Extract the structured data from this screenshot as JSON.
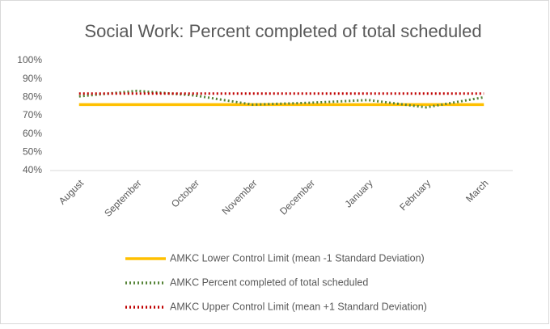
{
  "chart_data": {
    "type": "line",
    "title": "Social Work: Percent completed of total scheduled",
    "categories": [
      "August",
      "September",
      "October",
      "November",
      "December",
      "January",
      "February",
      "March"
    ],
    "series": [
      {
        "name": "AMKC Lower Control Limit (mean -1 Standard Deviation)",
        "color": "#ffc000",
        "style": "solid",
        "values": [
          76,
          76,
          76,
          76,
          76,
          76,
          76,
          76
        ]
      },
      {
        "name": "AMKC Percent completed of total scheduled",
        "color": "#548235",
        "style": "dotted",
        "values": [
          80.5,
          83.5,
          81,
          76,
          77,
          78.5,
          74.5,
          80
        ]
      },
      {
        "name": "AMKC Upper Control Limit (mean +1 Standard Deviation)",
        "color": "#c00000",
        "style": "dotted",
        "values": [
          82,
          82,
          82,
          82,
          82,
          82,
          82,
          82
        ]
      }
    ],
    "ylim": [
      40,
      100
    ],
    "yticks": [
      {
        "value": 40,
        "label": "40%"
      },
      {
        "value": 50,
        "label": "50%"
      },
      {
        "value": 60,
        "label": "60%"
      },
      {
        "value": 70,
        "label": "70%"
      },
      {
        "value": 80,
        "label": "80%"
      },
      {
        "value": 90,
        "label": "90%"
      },
      {
        "value": 100,
        "label": "100%"
      }
    ],
    "grid": false,
    "legend": "bottom"
  }
}
